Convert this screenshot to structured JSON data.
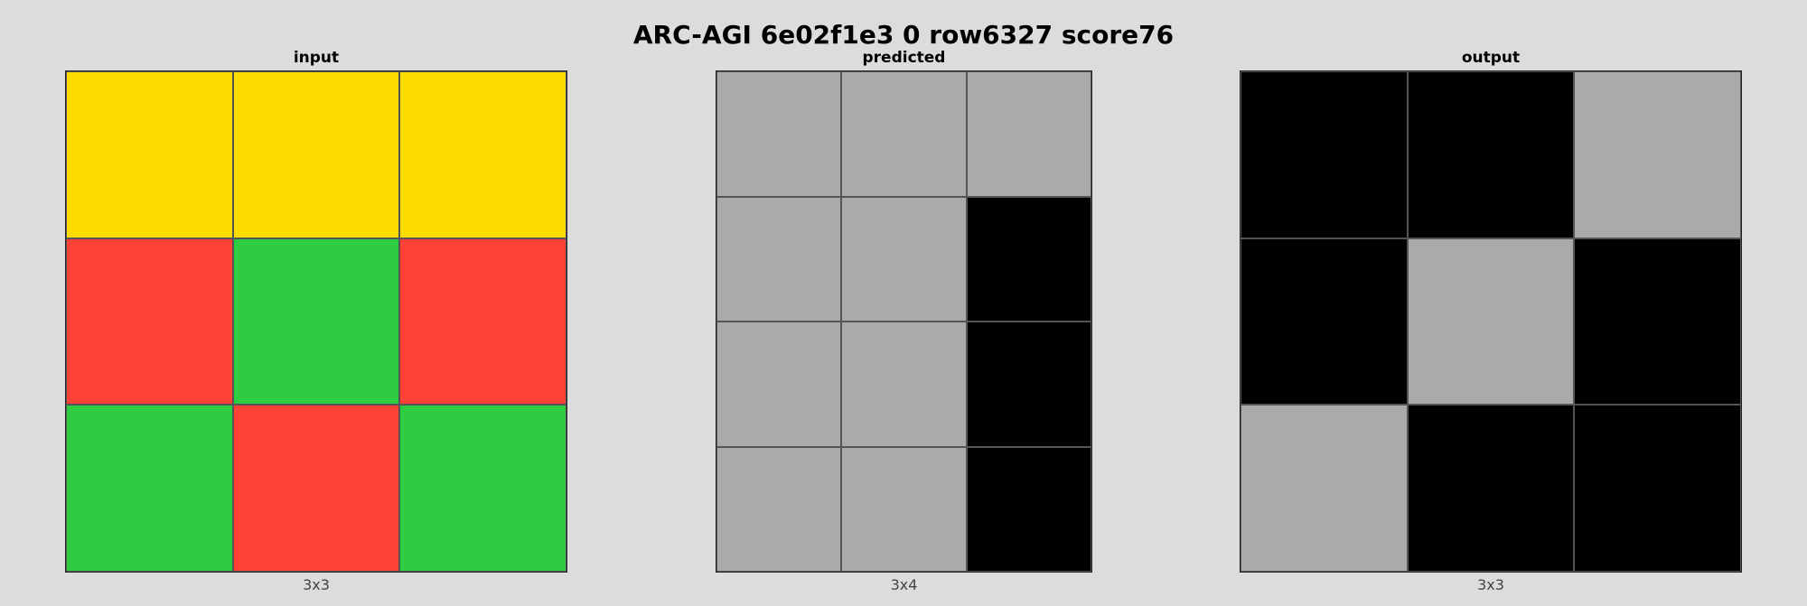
{
  "title": "ARC-AGI 6e02f1e3 0 row6327 score76",
  "palette": {
    "0": "#000000",
    "2": "#ff4136",
    "3": "#2ecc40",
    "4": "#ffdc00",
    "5": "#aaaaaa"
  },
  "panels": [
    {
      "label": "input",
      "size_label": "3x3",
      "cols": 3,
      "rows": 3,
      "cells": [
        [
          4,
          4,
          4
        ],
        [
          2,
          3,
          2
        ],
        [
          3,
          2,
          3
        ]
      ]
    },
    {
      "label": "predicted",
      "size_label": "3x4",
      "cols": 3,
      "rows": 4,
      "cells": [
        [
          5,
          5,
          5
        ],
        [
          5,
          5,
          0
        ],
        [
          5,
          5,
          0
        ],
        [
          5,
          5,
          0
        ]
      ]
    },
    {
      "label": "output",
      "size_label": "3x3",
      "cols": 3,
      "rows": 3,
      "cells": [
        [
          0,
          0,
          5
        ],
        [
          0,
          5,
          0
        ],
        [
          5,
          0,
          0
        ]
      ]
    }
  ]
}
